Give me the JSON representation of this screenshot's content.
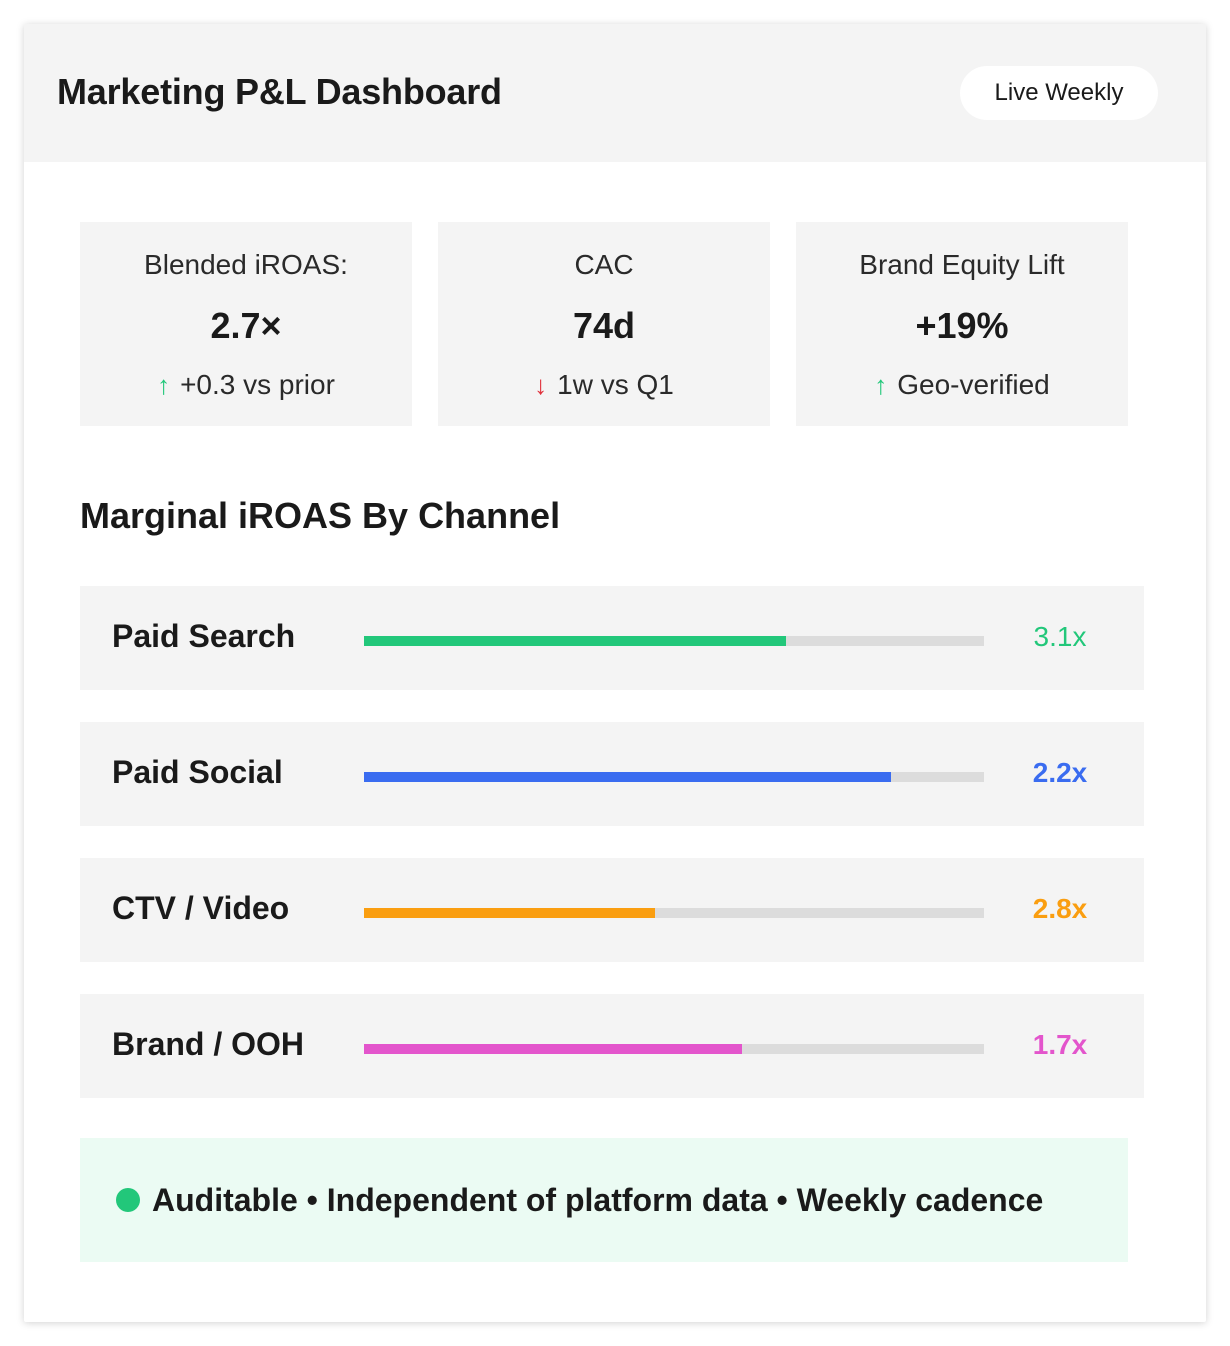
{
  "header": {
    "title": "Marketing P&L Dashboard",
    "badge": "Live Weekly"
  },
  "kpis": [
    {
      "label": "Blended iROAS:",
      "value": "2.7×",
      "direction": "up",
      "arrow_icon": "arrow-up-icon",
      "arrow_glyph": "↑",
      "arrow_color": "#22c77a",
      "delta": "+0.3 vs prior"
    },
    {
      "label": "CAC",
      "value": "74d",
      "direction": "down",
      "arrow_icon": "arrow-down-icon",
      "arrow_glyph": "↓",
      "arrow_color": "#e0303a",
      "delta": "1w vs Q1"
    },
    {
      "label": "Brand Equity Lift",
      "value": "+19%",
      "direction": "up",
      "arrow_icon": "arrow-up-icon",
      "arrow_glyph": "↑",
      "arrow_color": "#22c77a",
      "delta": "Geo-verified"
    }
  ],
  "section": {
    "title": "Marginal iROAS By Channel"
  },
  "channels": [
    {
      "name": "Paid Search",
      "value": "3.1x",
      "fill_fraction": 0.68,
      "color": "#22c77a",
      "bold": false
    },
    {
      "name": "Paid Social",
      "value": "2.2x",
      "fill_fraction": 0.85,
      "color": "#3a6cf0",
      "bold": true
    },
    {
      "name": "CTV / Video",
      "value": "2.8x",
      "fill_fraction": 0.47,
      "color": "#fa9e10",
      "bold": true
    },
    {
      "name": "Brand / OOH",
      "value": "1.7x",
      "fill_fraction": 0.61,
      "color": "#e355cc",
      "bold": true
    }
  ],
  "footer": {
    "dot_color": "#22c77a",
    "text": "Auditable • Independent of platform data • Weekly cadence"
  },
  "colors": {
    "panel_bg": "#f4f4f4",
    "track": "#dcdcdc",
    "footer_bg": "#ebfbf3"
  }
}
